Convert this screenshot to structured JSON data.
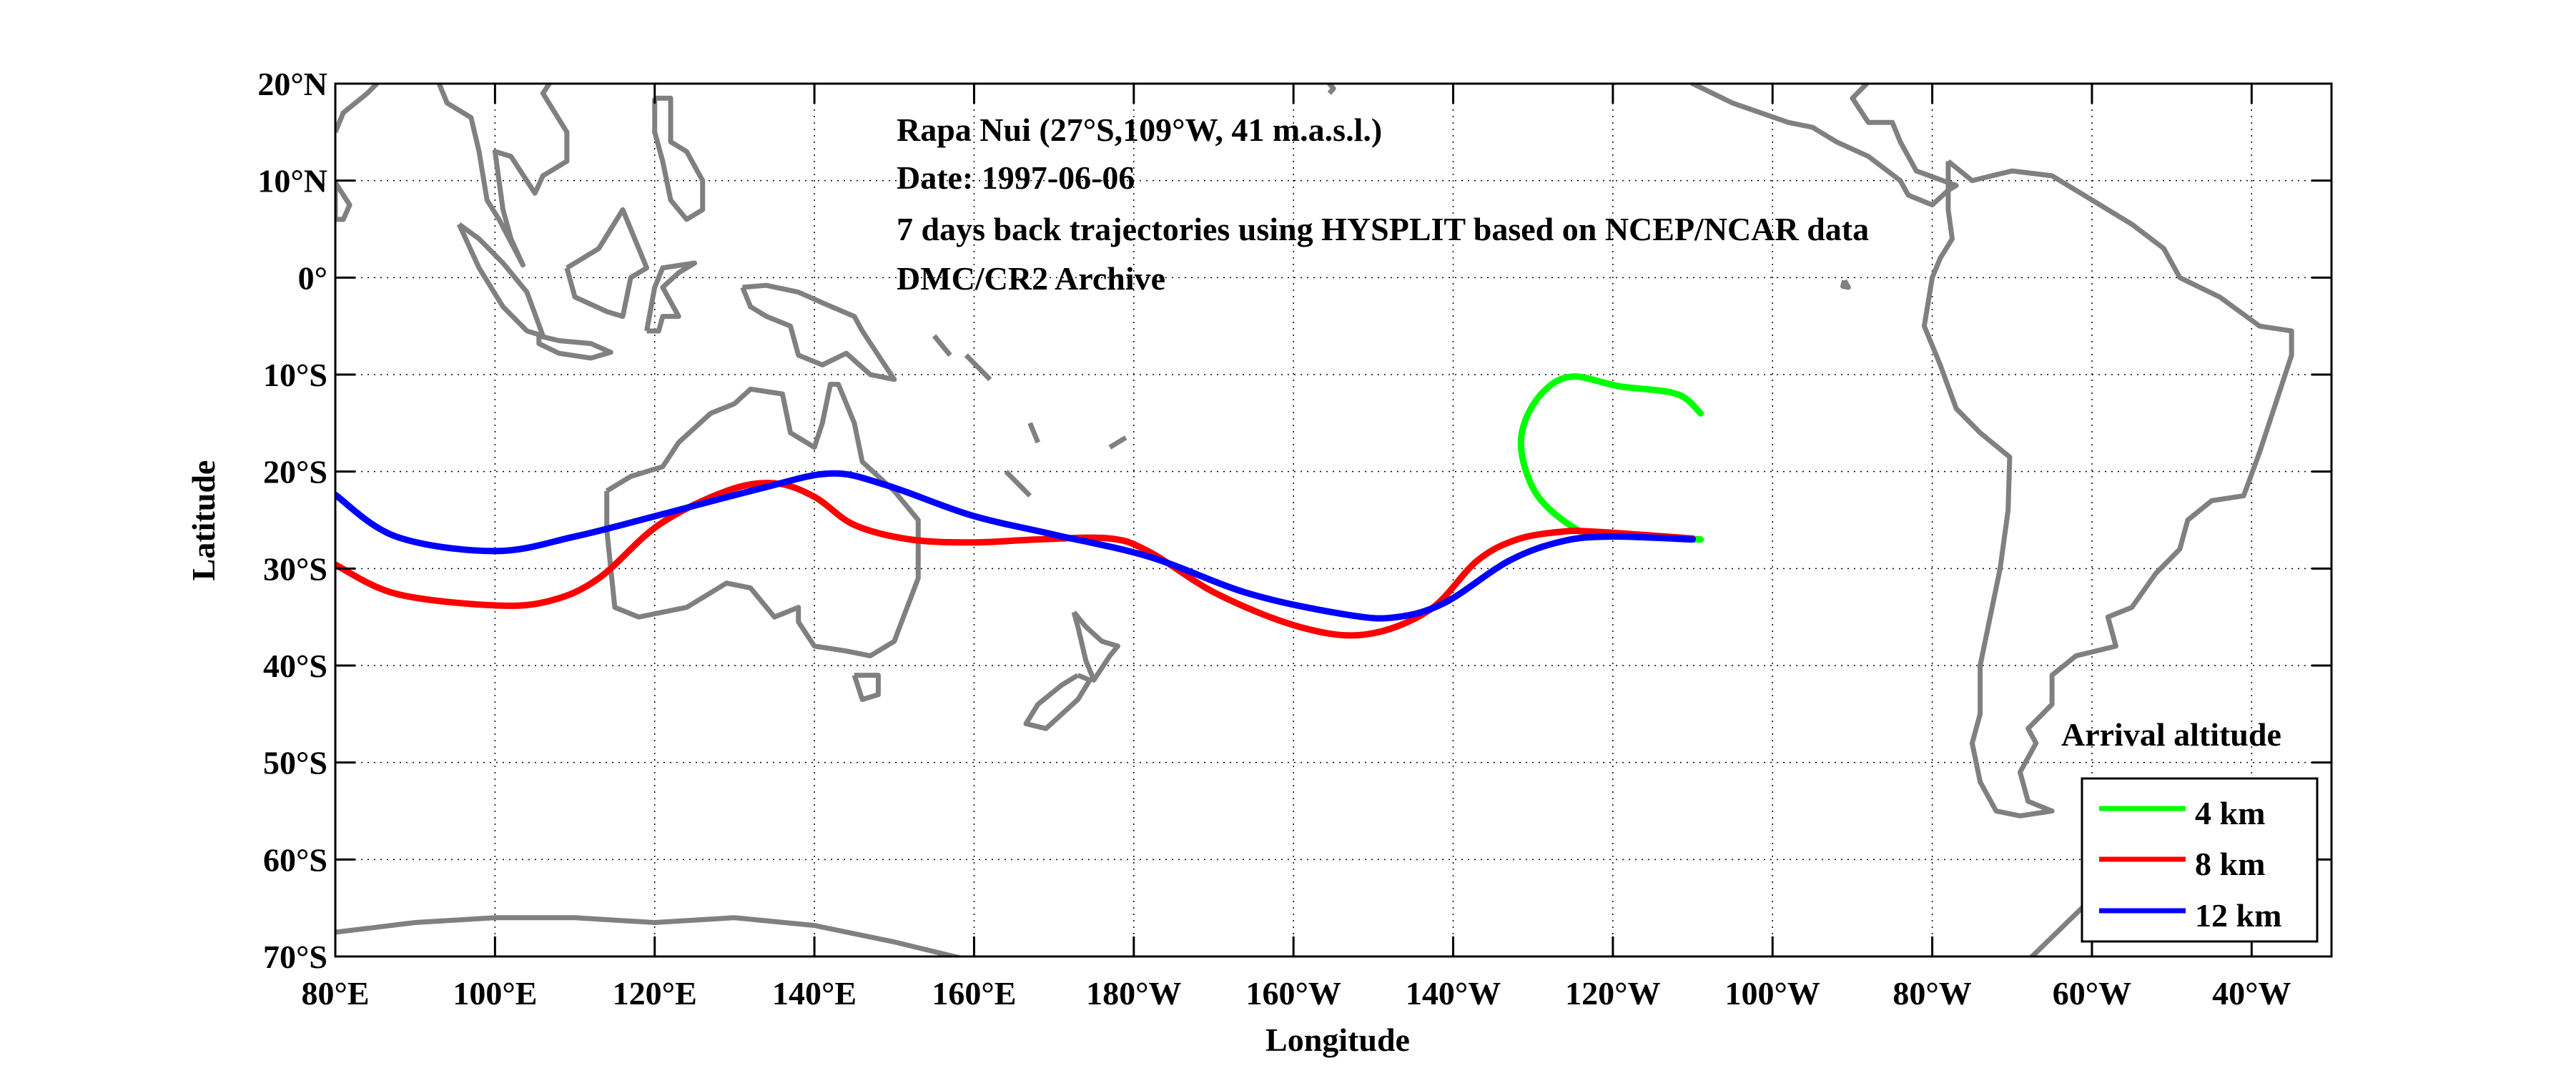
{
  "chart_data": {
    "type": "line",
    "xlabel": "Longitude",
    "ylabel": "Latitude",
    "xlim": [
      80,
      330
    ],
    "ylim": [
      -70,
      20
    ],
    "grid": true,
    "x_ticks": [
      80,
      100,
      120,
      140,
      160,
      180,
      200,
      220,
      240,
      260,
      280,
      300,
      320
    ],
    "x_tick_labels": [
      "80°E",
      "100°E",
      "120°E",
      "140°E",
      "160°E",
      "180°W",
      "160°W",
      "140°W",
      "120°W",
      "100°W",
      "80°W",
      "60°W",
      "40°W"
    ],
    "y_ticks": [
      20,
      10,
      0,
      -10,
      -20,
      -30,
      -40,
      -50,
      -60,
      -70
    ],
    "y_tick_labels": [
      "20°N",
      "10°N",
      "0°",
      "10°S",
      "20°S",
      "30°S",
      "40°S",
      "50°S",
      "60°S",
      "70°S"
    ],
    "annotations": [
      "Rapa Nui (27°S,109°W, 41 m.a.s.l.)",
      "Date: 1997-06-06",
      "7 days back trajectories using HYSPLIT based on NCEP/NCAR data",
      "DMC/CR2 Archive"
    ],
    "legend": {
      "title": "Arrival altitude",
      "placement": "bottom-right"
    },
    "coastline_color": "#808080",
    "series": [
      {
        "name": "4 km",
        "color": "#00ff00",
        "lon": [
          251,
          248,
          240.8,
          235,
          231.5,
          229,
          228.6,
          230.5,
          234.6,
          238.3,
          251
        ],
        "lat": [
          -14,
          -12,
          -11.2,
          -10.2,
          -11.6,
          -14.8,
          -18.2,
          -22.4,
          -25.5,
          -26.5,
          -27
        ]
      },
      {
        "name": "8 km",
        "color": "#ff0000",
        "lon": [
          80,
          87.6,
          100,
          107,
          113,
          120.5,
          129,
          135,
          140,
          145,
          152,
          160,
          168,
          177,
          182,
          190.4,
          200.7,
          209,
          217,
          223,
          228,
          233.6,
          237.7,
          250
        ],
        "lat": [
          -29.6,
          -32.6,
          -33.8,
          -33.3,
          -31,
          -25.5,
          -22,
          -21.2,
          -22.6,
          -25.5,
          -27,
          -27.3,
          -27,
          -26.9,
          -28.3,
          -32.6,
          -36,
          -36.8,
          -34.3,
          -29.2,
          -27,
          -26.2,
          -26.2,
          -26.9
        ]
      },
      {
        "name": "12 km",
        "color": "#0000ff",
        "lon": [
          80,
          87.6,
          100,
          110,
          120.5,
          133,
          142,
          149,
          159.6,
          170,
          182,
          194.5,
          207,
          213,
          219,
          227,
          233.6,
          239.7,
          250
        ],
        "lat": [
          -22.4,
          -26.7,
          -28.2,
          -26.7,
          -24.5,
          -21.8,
          -20.2,
          -21.4,
          -24.5,
          -26.5,
          -28.8,
          -32.6,
          -34.8,
          -35,
          -33.5,
          -29.2,
          -27.2,
          -26.7,
          -27
        ]
      }
    ]
  }
}
